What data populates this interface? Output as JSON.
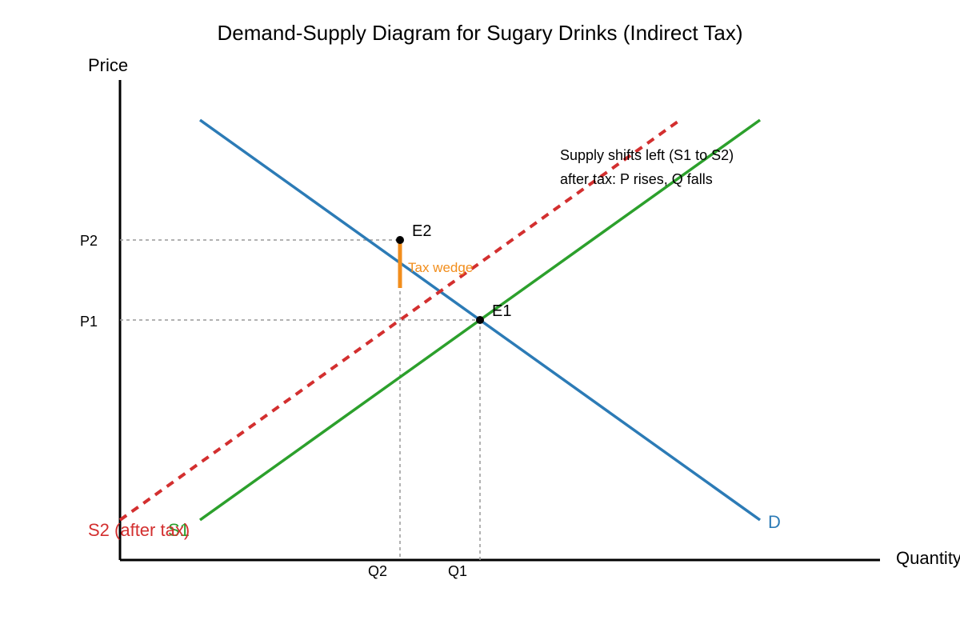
{
  "title": "Demand-Supply Diagram for Sugary Drinks (Indirect Tax)",
  "axes": {
    "y_label": "Price",
    "x_label": "Quantity"
  },
  "ticks": {
    "p1": "P1",
    "p2": "P2",
    "q1": "Q1",
    "q2": "Q2"
  },
  "curves": {
    "demand": "D",
    "supply_before": "S1",
    "supply_after": "S2 (after tax)"
  },
  "points": {
    "e1": "E1",
    "e2": "E2"
  },
  "tax_label": "Tax wedge",
  "annotation": {
    "line1": "Supply shifts left (S1 to S2)",
    "line2": "after tax: P rises, Q falls"
  },
  "colors": {
    "demand": "#2c7bb6",
    "supply_before": "#2ca02c",
    "supply_after": "#d32f2f",
    "tax_wedge": "#f28e1c",
    "guides": "#999999"
  }
}
